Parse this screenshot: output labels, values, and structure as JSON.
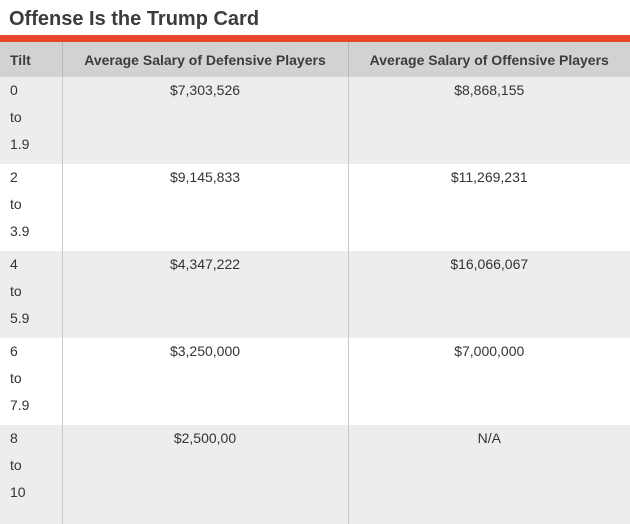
{
  "title": "Offense Is the Trump Card",
  "colors": {
    "accent": "#e8452a",
    "header_bg": "#d2d2d2",
    "row_stripe": "#ededed",
    "text": "#333333"
  },
  "chart_data": {
    "type": "table",
    "title": "Offense Is the Trump Card",
    "columns": [
      "Tilt",
      "Average Salary of Defensive Players",
      "Average Salary of Offensive Players"
    ],
    "rows": [
      [
        "0 to 1.9",
        "$7,303,526",
        "$8,868,155"
      ],
      [
        "2 to 3.9",
        "$9,145,833",
        "$11,269,231"
      ],
      [
        "4 to 5.9",
        "$4,347,222",
        "$16,066,067"
      ],
      [
        "6 to 7.9",
        "$3,250,000",
        "$7,000,000"
      ],
      [
        "8 to 10",
        "$2,500,00",
        "N/A"
      ]
    ]
  }
}
